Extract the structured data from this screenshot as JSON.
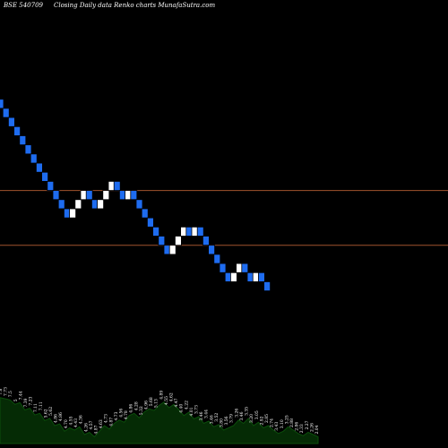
{
  "header": {
    "symbol": "BSE 540709",
    "text": "Closing Daily data  Renko  charts MunafaSutra.com"
  },
  "chart_data": {
    "type": "renko",
    "title": "BSE 540709 Closing Daily data Renko charts MunafaSutra.com",
    "bricks": [
      {
        "close": 7.85,
        "dir": "down"
      },
      {
        "close": 7.8,
        "dir": "down"
      },
      {
        "close": 7.75,
        "dir": "down"
      },
      {
        "close": 7.7,
        "dir": "down"
      },
      {
        "close": 7.65,
        "dir": "down"
      },
      {
        "close": 7.6,
        "dir": "down"
      },
      {
        "close": 7.55,
        "dir": "down"
      },
      {
        "close": 7.5,
        "dir": "down"
      },
      {
        "close": 7.45,
        "dir": "down"
      },
      {
        "close": 7.4,
        "dir": "down"
      },
      {
        "close": 7.35,
        "dir": "down"
      },
      {
        "close": 7.3,
        "dir": "down"
      },
      {
        "close": 7.25,
        "dir": "down"
      },
      {
        "close": 7.3,
        "dir": "up"
      },
      {
        "close": 7.35,
        "dir": "up"
      },
      {
        "close": 7.4,
        "dir": "up"
      },
      {
        "close": 7.35,
        "dir": "down"
      },
      {
        "close": 7.3,
        "dir": "down"
      },
      {
        "close": 7.35,
        "dir": "up"
      },
      {
        "close": 7.4,
        "dir": "up"
      },
      {
        "close": 7.45,
        "dir": "up"
      },
      {
        "close": 7.4,
        "dir": "down"
      },
      {
        "close": 7.35,
        "dir": "down"
      },
      {
        "close": 7.4,
        "dir": "up"
      },
      {
        "close": 7.35,
        "dir": "down"
      },
      {
        "close": 7.3,
        "dir": "down"
      },
      {
        "close": 7.25,
        "dir": "down"
      },
      {
        "close": 7.2,
        "dir": "down"
      },
      {
        "close": 7.15,
        "dir": "down"
      },
      {
        "close": 7.1,
        "dir": "down"
      },
      {
        "close": 7.05,
        "dir": "down"
      },
      {
        "close": 7.1,
        "dir": "up"
      },
      {
        "close": 7.15,
        "dir": "up"
      },
      {
        "close": 7.2,
        "dir": "up"
      },
      {
        "close": 7.15,
        "dir": "down"
      },
      {
        "close": 7.2,
        "dir": "up"
      },
      {
        "close": 7.15,
        "dir": "down"
      },
      {
        "close": 7.1,
        "dir": "down"
      },
      {
        "close": 7.05,
        "dir": "down"
      },
      {
        "close": 7.0,
        "dir": "down"
      },
      {
        "close": 6.95,
        "dir": "down"
      },
      {
        "close": 6.9,
        "dir": "down"
      },
      {
        "close": 6.95,
        "dir": "up"
      },
      {
        "close": 7.0,
        "dir": "up"
      },
      {
        "close": 6.95,
        "dir": "down"
      },
      {
        "close": 6.9,
        "dir": "down"
      },
      {
        "close": 6.95,
        "dir": "up"
      },
      {
        "close": 6.9,
        "dir": "down"
      },
      {
        "close": 6.85,
        "dir": "down"
      }
    ],
    "ylim": [
      6.75,
      8.1
    ],
    "ref_lines": [
      7.4,
      7.1
    ],
    "colors": {
      "up": "#ffffff",
      "down": "#1e6cf0",
      "ref_line": "#a0522d",
      "area_fill": "#052b05",
      "area_stroke": "#0b4d0b",
      "background": "#000000"
    },
    "price_labels": [
      "7.8",
      "7.73",
      "7.5",
      "5",
      "7.44",
      "7.39",
      "7.23",
      "7.11",
      "7.11",
      "5.62",
      "5.62",
      "4.86",
      "4.86",
      "4.70",
      "4.55",
      "4.43",
      "4.36",
      "4.26",
      "4.57",
      "4.87",
      "4.63",
      "4.73",
      "4.87",
      "4.73",
      "4.56",
      "4.78",
      "4.86",
      "4.28",
      "5.32",
      "4.96",
      "5.68",
      "5.13",
      "4.89",
      "4.55",
      "4.62",
      "4.47",
      "4.40",
      "4.22",
      "4.01",
      "3.73",
      "3.46",
      "3.44",
      "3.46",
      "3.52",
      "3.80",
      "3.56",
      "3.79",
      "3.26",
      "3.46",
      "3.35",
      "3.20",
      "3.05",
      "2.92",
      "2.85",
      "2.74",
      "3.43",
      "3.10",
      "3.25",
      "2.88",
      "2.86",
      "2.33",
      "2.27",
      "2.26",
      "2.04"
    ],
    "bottom_area": [
      118,
      120,
      122,
      130,
      127,
      140,
      137,
      149,
      146,
      159,
      155,
      168,
      165,
      178,
      172,
      176,
      170,
      184,
      180,
      188,
      178,
      168,
      174,
      164,
      158,
      162,
      150,
      146,
      154,
      144,
      138,
      141,
      132,
      126,
      136,
      130,
      140,
      150,
      144,
      156,
      152,
      164,
      160,
      170,
      166,
      176,
      172,
      168,
      158,
      164,
      155,
      168,
      162,
      172,
      168,
      176,
      182,
      178,
      170,
      176,
      182,
      186,
      180,
      184,
      188
    ]
  }
}
